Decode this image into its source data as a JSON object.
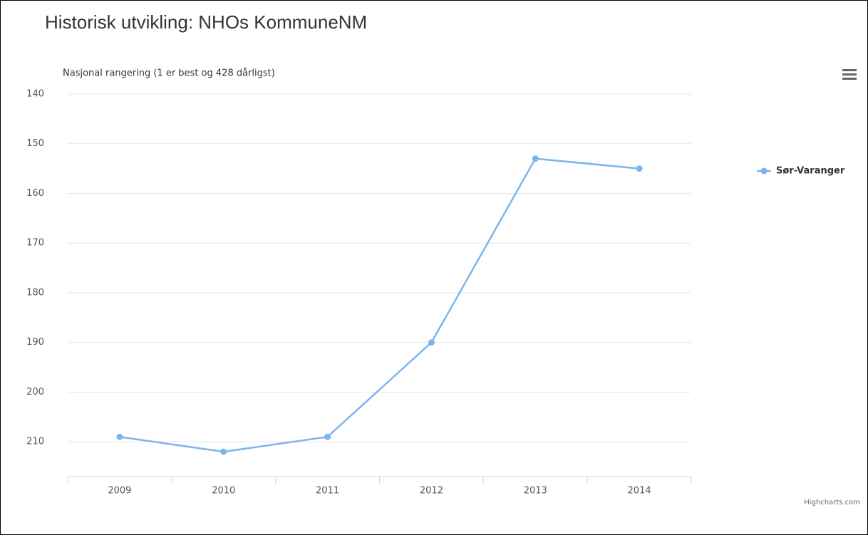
{
  "chart_data": {
    "type": "line",
    "title": "Historisk utvikling: NHOs KommuneNM",
    "y_label": "Nasjonal rangering (1 er best og 428 dårligst)",
    "categories": [
      "2009",
      "2010",
      "2011",
      "2012",
      "2013",
      "2014"
    ],
    "series": [
      {
        "name": "Sør-Varanger",
        "color": "#7cb5ec",
        "values": [
          209,
          212,
          209,
          190,
          153,
          155
        ]
      }
    ],
    "ylim": [
      140,
      217
    ],
    "y_reversed": true,
    "yticks": [
      140,
      150,
      160,
      170,
      180,
      190,
      200,
      210
    ],
    "grid": true,
    "legend": "right",
    "credit": "Highcharts.com"
  }
}
